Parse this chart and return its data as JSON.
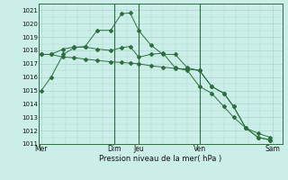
{
  "xlabel": "Pression niveau de la mer( hPa )",
  "ylim": [
    1011,
    1021.5
  ],
  "yticks": [
    1011,
    1012,
    1013,
    1014,
    1015,
    1016,
    1017,
    1018,
    1019,
    1020,
    1021
  ],
  "bg_color": "#cceee8",
  "grid_color": "#aad4ce",
  "line_color": "#2d6e3e",
  "vline_color": "#2d6e3e",
  "xtick_labels": [
    "Mer",
    "Dim",
    "Jeu",
    "Ven",
    "Sam"
  ],
  "xtick_positions": [
    0.0,
    3.0,
    4.0,
    6.5,
    9.5
  ],
  "vlines": [
    3.0,
    4.0,
    6.5
  ],
  "xlim": [
    -0.1,
    9.9
  ],
  "line1_x": [
    0.0,
    0.4,
    0.9,
    1.35,
    1.8,
    2.3,
    2.85,
    3.3,
    3.65,
    4.0,
    4.5,
    5.0,
    5.5,
    6.0,
    6.5,
    7.0,
    7.5,
    7.9,
    8.4,
    8.9,
    9.4
  ],
  "line1_y": [
    1015.0,
    1016.0,
    1017.7,
    1018.2,
    1018.3,
    1019.5,
    1019.5,
    1020.75,
    1020.8,
    1019.5,
    1018.4,
    1017.7,
    1017.7,
    1016.7,
    1016.5,
    1015.3,
    1014.8,
    1013.8,
    1012.2,
    1011.8,
    1011.5
  ],
  "line2_x": [
    0.0,
    0.4,
    0.9,
    1.35,
    1.8,
    2.3,
    2.85,
    3.3,
    3.65,
    4.0,
    4.5,
    5.0,
    5.5,
    6.0,
    6.5,
    7.0,
    7.5,
    7.9,
    8.4,
    8.9,
    9.4
  ],
  "line2_y": [
    1017.7,
    1017.7,
    1018.1,
    1018.25,
    1018.25,
    1018.1,
    1018.0,
    1018.2,
    1018.3,
    1017.5,
    1017.7,
    1017.8,
    1016.7,
    1016.5,
    1015.3,
    1014.8,
    1013.8,
    1013.0,
    1012.2,
    1011.5,
    1011.3
  ],
  "line3_x": [
    0.0,
    0.4,
    0.9,
    1.35,
    1.8,
    2.3,
    2.85,
    3.3,
    3.65,
    4.0,
    4.5,
    5.0,
    5.5,
    6.0,
    6.5,
    7.0,
    7.5,
    7.9,
    8.4,
    8.9,
    9.4
  ],
  "line3_y": [
    1017.7,
    1017.7,
    1017.5,
    1017.45,
    1017.35,
    1017.25,
    1017.15,
    1017.1,
    1017.05,
    1017.0,
    1016.85,
    1016.75,
    1016.65,
    1016.6,
    1016.5,
    1015.3,
    1014.8,
    1013.8,
    1012.2,
    1011.5,
    1011.3
  ],
  "figsize": [
    3.2,
    2.0
  ],
  "dpi": 100
}
